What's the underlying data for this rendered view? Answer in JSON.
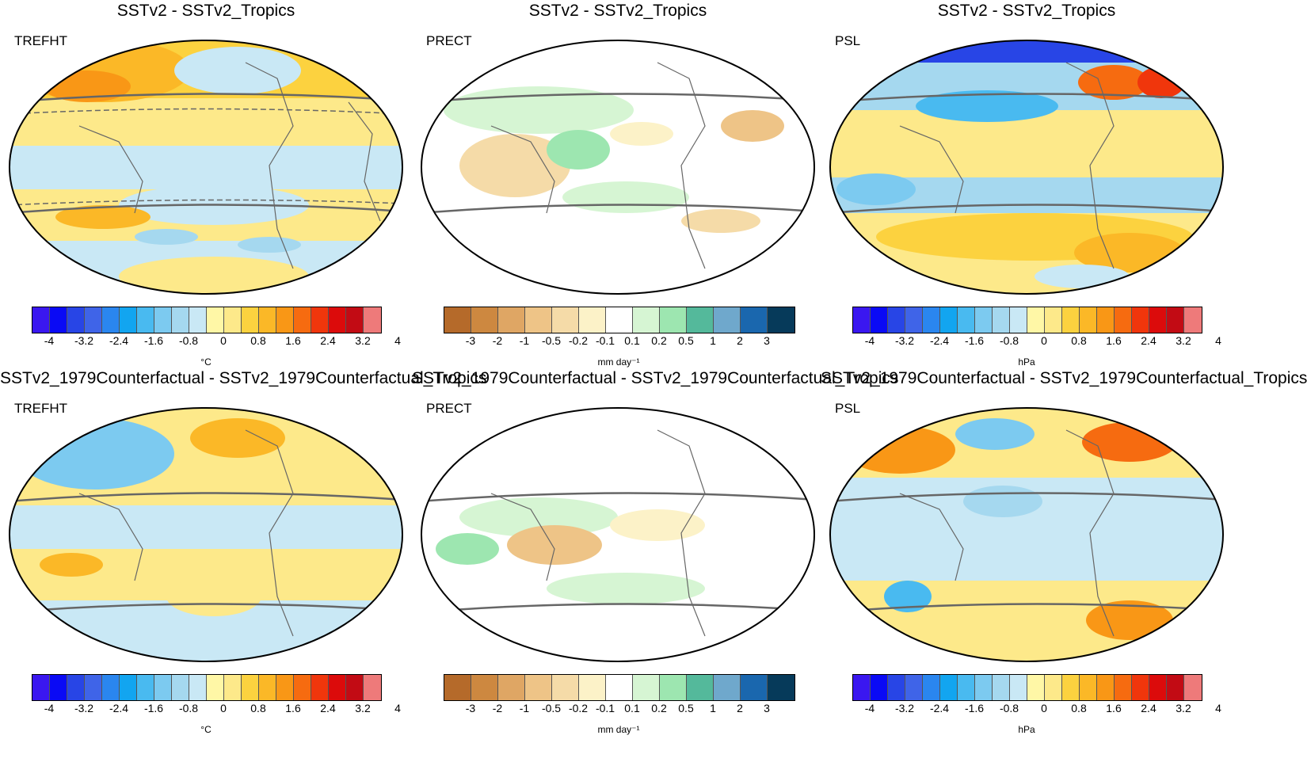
{
  "panels": [
    {
      "title": "SSTv2 - SSTv2_Tropics",
      "variable": "TREFHT",
      "palette": "temp",
      "unit": "°C"
    },
    {
      "title": "SSTv2 - SSTv2_Tropics",
      "variable": "PRECT",
      "palette": "precip",
      "unit": "mm day⁻¹"
    },
    {
      "title": "SSTv2 - SSTv2_Tropics",
      "variable": "PSL",
      "palette": "temp",
      "unit": "hPa"
    },
    {
      "title": "SSTv2_1979Counterfactual - SSTv2_1979Counterfactual_Tropics",
      "variable": "TREFHT",
      "palette": "temp",
      "unit": "°C"
    },
    {
      "title": "SSTv2_1979Counterfactual - SSTv2_1979Counterfactual_Tropics",
      "variable": "PRECT",
      "palette": "precip",
      "unit": "mm day⁻¹"
    },
    {
      "title": "SSTv2_1979Counterfactual - SSTv2_1979Counterfactual_Tropics",
      "variable": "PSL",
      "palette": "temp",
      "unit": "hPa"
    }
  ],
  "colorbars": {
    "temp": {
      "colors": [
        "#3a17f0",
        "#0a0af5",
        "#2845e6",
        "#3f64e8",
        "#2a86ef",
        "#12a5f0",
        "#49baf0",
        "#7ccaf0",
        "#a5d8ef",
        "#c9e8f5",
        "#fff7a6",
        "#fde98a",
        "#fcd23f",
        "#fbb827",
        "#f99716",
        "#f66b10",
        "#f0360c",
        "#dc0b0b",
        "#c20b14",
        "#ee7a7a"
      ],
      "labels": [
        "-4",
        "-3.2",
        "-2.4",
        "-1.6",
        "-0.8",
        "0",
        "0.8",
        "1.6",
        "2.4",
        "3.2",
        "4"
      ]
    },
    "precip": {
      "colors": [
        "#b56a2a",
        "#cd8840",
        "#dfa664",
        "#eec487",
        "#f5dba8",
        "#fcf2c8",
        "#ffffff",
        "#d6f5d3",
        "#9de6b0",
        "#54b99b",
        "#6fa8cc",
        "#1a67ae",
        "#063a5a"
      ],
      "labels": [
        "-3",
        "-2",
        "-1",
        "-0.5",
        "-0.2",
        "-0.1",
        "0.1",
        "0.2",
        "0.5",
        "1",
        "2",
        "3"
      ]
    }
  }
}
